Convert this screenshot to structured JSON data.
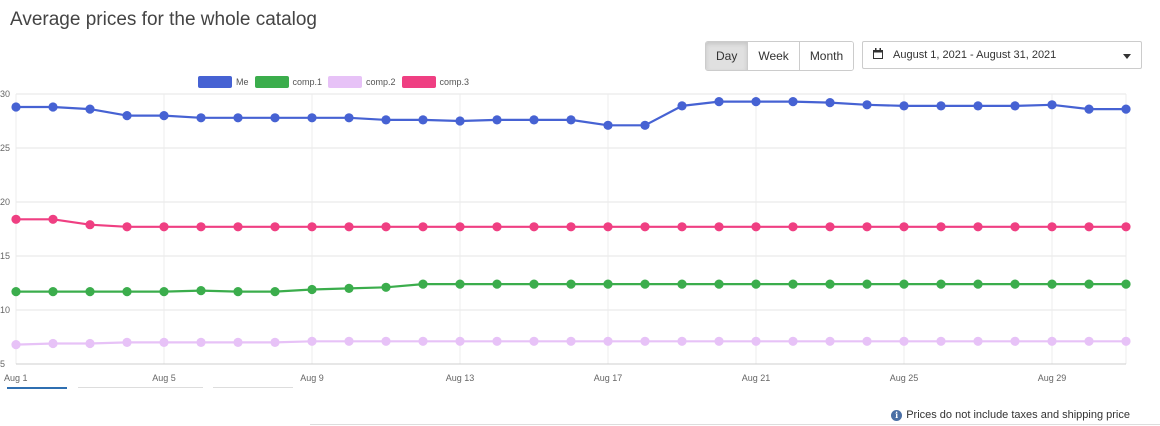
{
  "page": {
    "title": "Average prices for the whole catalog",
    "footnote": "Prices do not include taxes and shipping price"
  },
  "controls": {
    "granularity": [
      {
        "label": "Day",
        "active": true
      },
      {
        "label": "Week",
        "active": false
      },
      {
        "label": "Month",
        "active": false
      }
    ],
    "date_range": "August 1, 2021 - August 31, 2021"
  },
  "icons": {
    "calendar": "calendar-icon",
    "caret": "caret-down-icon",
    "info": "info-icon"
  },
  "chart_data": {
    "type": "line",
    "x": [
      "Aug 1",
      "Aug 2",
      "Aug 3",
      "Aug 4",
      "Aug 5",
      "Aug 6",
      "Aug 7",
      "Aug 8",
      "Aug 9",
      "Aug 10",
      "Aug 11",
      "Aug 12",
      "Aug 13",
      "Aug 14",
      "Aug 15",
      "Aug 16",
      "Aug 17",
      "Aug 18",
      "Aug 19",
      "Aug 20",
      "Aug 21",
      "Aug 22",
      "Aug 23",
      "Aug 24",
      "Aug 25",
      "Aug 26",
      "Aug 27",
      "Aug 28",
      "Aug 29",
      "Aug 30",
      "Aug 31"
    ],
    "x_tick_labels": [
      "Aug 1",
      "Aug 5",
      "Aug 9",
      "Aug 13",
      "Aug 17",
      "Aug 21",
      "Aug 25",
      "Aug 29"
    ],
    "y_tick_labels": [
      "30",
      "25",
      "20",
      "15",
      "10",
      "5"
    ],
    "ylim": [
      5,
      30
    ],
    "grid": true,
    "legend_position": "top",
    "series": [
      {
        "name": "Me",
        "color": "#4662d3",
        "values": [
          28.8,
          28.8,
          28.6,
          28.0,
          28.0,
          27.8,
          27.8,
          27.8,
          27.8,
          27.8,
          27.6,
          27.6,
          27.5,
          27.6,
          27.6,
          27.6,
          27.1,
          27.1,
          28.9,
          29.3,
          29.3,
          29.3,
          29.2,
          29.0,
          28.9,
          28.9,
          28.9,
          28.9,
          29.0,
          28.6,
          28.6
        ]
      },
      {
        "name": "comp.1",
        "color": "#3bad4c",
        "values": [
          11.7,
          11.7,
          11.7,
          11.7,
          11.7,
          11.8,
          11.7,
          11.7,
          11.9,
          12.0,
          12.1,
          12.4,
          12.4,
          12.4,
          12.4,
          12.4,
          12.4,
          12.4,
          12.4,
          12.4,
          12.4,
          12.4,
          12.4,
          12.4,
          12.4,
          12.4,
          12.4,
          12.4,
          12.4,
          12.4,
          12.4
        ]
      },
      {
        "name": "comp.2",
        "color": "#e7c2f7",
        "values": [
          6.8,
          6.9,
          6.9,
          7.0,
          7.0,
          7.0,
          7.0,
          7.0,
          7.1,
          7.1,
          7.1,
          7.1,
          7.1,
          7.1,
          7.1,
          7.1,
          7.1,
          7.1,
          7.1,
          7.1,
          7.1,
          7.1,
          7.1,
          7.1,
          7.1,
          7.1,
          7.1,
          7.1,
          7.1,
          7.1,
          7.1
        ]
      },
      {
        "name": "comp.3",
        "color": "#ef3f82",
        "values": [
          18.4,
          18.4,
          17.9,
          17.7,
          17.7,
          17.7,
          17.7,
          17.7,
          17.7,
          17.7,
          17.7,
          17.7,
          17.7,
          17.7,
          17.7,
          17.7,
          17.7,
          17.7,
          17.7,
          17.7,
          17.7,
          17.7,
          17.7,
          17.7,
          17.7,
          17.7,
          17.7,
          17.7,
          17.7,
          17.7,
          17.7
        ]
      }
    ]
  }
}
